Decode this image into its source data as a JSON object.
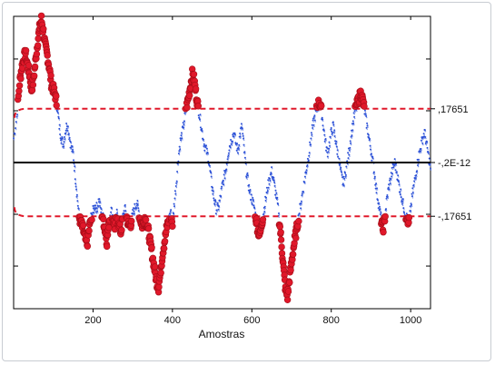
{
  "chart_data": {
    "type": "scatter",
    "title": "",
    "xlabel": "Amostras",
    "ylabel": "",
    "xlim": [
      0,
      1050
    ],
    "ylim": [
      -0.48,
      0.48
    ],
    "x_ticks": [
      200,
      400,
      600,
      800,
      1000
    ],
    "x_tick_labels": [
      "200",
      "400",
      "600",
      "800",
      "1000"
    ],
    "y_ticks": [
      -0.34,
      -0.17,
      0.17,
      0.34
    ],
    "grid": false,
    "levels": [
      {
        "value": 0.17651,
        "label": ",17651",
        "style": "dashed",
        "color": "#e0182a"
      },
      {
        "value": 0.0,
        "label": "-,2E-12",
        "style": "solid",
        "color": "#000000"
      },
      {
        "value": -0.17651,
        "label": "-,17651",
        "style": "dashed",
        "color": "#e0182a"
      }
    ],
    "series": [
      {
        "name": "",
        "color": "#2a4fd6",
        "marker": "small-dot"
      },
      {
        "name": "",
        "color": "#e0182a",
        "marker": "filled-circle"
      }
    ],
    "points_x": [
      0,
      8,
      15,
      20,
      25,
      30,
      35,
      40,
      45,
      50,
      55,
      60,
      65,
      70,
      75,
      80,
      85,
      90,
      95,
      100,
      105,
      110,
      115,
      120,
      125,
      130,
      135,
      140,
      145,
      150,
      155,
      160,
      165,
      170,
      175,
      180,
      185,
      190,
      195,
      200,
      205,
      210,
      215,
      220,
      225,
      230,
      235,
      240,
      245,
      250,
      255,
      260,
      265,
      270,
      275,
      280,
      285,
      290,
      295,
      300,
      305,
      310,
      315,
      320,
      325,
      330,
      335,
      340,
      345,
      350,
      355,
      360,
      365,
      370,
      375,
      380,
      385,
      390,
      395,
      400,
      405,
      410,
      415,
      420,
      425,
      430,
      435,
      440,
      445,
      450,
      455,
      460,
      465,
      470,
      475,
      480,
      485,
      490,
      495,
      500,
      505,
      510,
      515,
      520,
      525,
      530,
      535,
      540,
      545,
      550,
      555,
      560,
      565,
      570,
      575,
      580,
      585,
      590,
      595,
      600,
      605,
      610,
      615,
      620,
      625,
      630,
      635,
      640,
      645,
      650,
      655,
      660,
      665,
      670,
      675,
      680,
      685,
      690,
      695,
      700,
      705,
      710,
      715,
      720,
      725,
      730,
      735,
      740,
      745,
      750,
      755,
      760,
      765,
      770,
      775,
      780,
      785,
      790,
      795,
      800,
      805,
      810,
      815,
      820,
      825,
      830,
      835,
      840,
      845,
      850,
      855,
      860,
      865,
      870,
      875,
      880,
      885,
      890,
      895,
      900,
      905,
      910,
      915,
      920,
      925,
      930,
      935,
      940,
      945,
      950,
      955,
      960,
      965,
      970,
      975,
      980,
      985,
      990,
      995,
      1000,
      1005,
      1010,
      1015,
      1020,
      1025,
      1030,
      1035,
      1040,
      1045,
      1050
    ],
    "points_y": [
      0.08,
      0.15,
      0.26,
      0.31,
      0.34,
      0.36,
      0.32,
      0.29,
      0.24,
      0.27,
      0.33,
      0.39,
      0.44,
      0.47,
      0.43,
      0.38,
      0.35,
      0.31,
      0.26,
      0.24,
      0.22,
      0.18,
      0.12,
      0.08,
      0.06,
      0.1,
      0.13,
      0.09,
      0.05,
      0.03,
      -0.04,
      -0.11,
      -0.18,
      -0.2,
      -0.22,
      -0.25,
      -0.27,
      -0.22,
      -0.18,
      -0.16,
      -0.14,
      -0.15,
      -0.12,
      -0.16,
      -0.18,
      -0.22,
      -0.26,
      -0.2,
      -0.15,
      -0.18,
      -0.21,
      -0.17,
      -0.2,
      -0.23,
      -0.18,
      -0.15,
      -0.18,
      -0.21,
      -0.2,
      -0.17,
      -0.15,
      -0.13,
      -0.16,
      -0.19,
      -0.21,
      -0.18,
      -0.2,
      -0.23,
      -0.27,
      -0.31,
      -0.35,
      -0.39,
      -0.41,
      -0.36,
      -0.3,
      -0.26,
      -0.22,
      -0.19,
      -0.16,
      -0.2,
      -0.13,
      -0.06,
      0.02,
      0.07,
      0.1,
      0.14,
      0.18,
      0.21,
      0.25,
      0.29,
      0.27,
      0.22,
      0.18,
      0.14,
      0.1,
      0.06,
      0.04,
      0.02,
      -0.03,
      -0.08,
      -0.12,
      -0.15,
      -0.15,
      -0.12,
      -0.08,
      -0.05,
      -0.02,
      0.03,
      0.06,
      0.08,
      0.1,
      0.06,
      0.04,
      0.09,
      0.12,
      0.05,
      -0.02,
      -0.06,
      -0.1,
      -0.12,
      -0.14,
      -0.18,
      -0.22,
      -0.24,
      -0.2,
      -0.16,
      -0.12,
      -0.08,
      -0.05,
      -0.03,
      -0.06,
      -0.1,
      -0.14,
      -0.2,
      -0.27,
      -0.35,
      -0.42,
      -0.44,
      -0.38,
      -0.33,
      -0.28,
      -0.24,
      -0.2,
      -0.16,
      -0.12,
      -0.08,
      -0.04,
      0.0,
      0.04,
      0.09,
      0.13,
      0.16,
      0.18,
      0.2,
      0.17,
      0.12,
      0.07,
      0.03,
      0.06,
      0.1,
      0.12,
      0.08,
      0.04,
      0.0,
      -0.04,
      -0.07,
      -0.04,
      0.0,
      0.04,
      0.09,
      0.13,
      0.17,
      0.19,
      0.21,
      0.23,
      0.2,
      0.16,
      0.12,
      0.08,
      0.04,
      0.0,
      -0.05,
      -0.1,
      -0.14,
      -0.18,
      -0.22,
      -0.18,
      -0.12,
      -0.08,
      -0.05,
      -0.02,
      0.0,
      -0.03,
      -0.07,
      -0.1,
      -0.13,
      -0.16,
      -0.18,
      -0.2,
      -0.15,
      -0.1,
      -0.06,
      -0.02,
      0.02,
      0.05,
      0.08,
      0.1,
      0.06,
      0.02,
      -0.02
    ]
  }
}
